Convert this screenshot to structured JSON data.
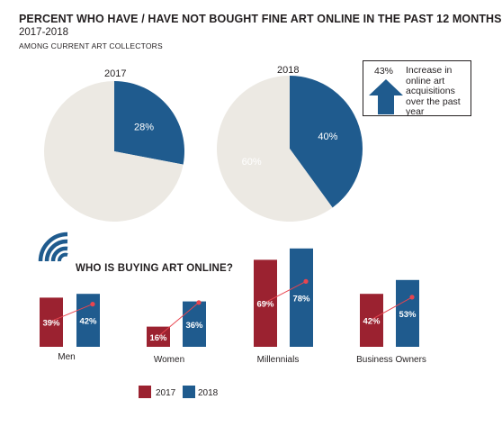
{
  "title": "PERCENT WHO HAVE / HAVE NOT BOUGHT FINE ART ONLINE IN THE PAST 12 MONTHS",
  "subtitle": "2017-2018",
  "audience": "AMONG CURRENT ART COLLECTORS",
  "colors": {
    "y2017": "#9b2230",
    "y2018": "#1f5b8e",
    "pie_rest": "#ece9e3",
    "arrow": "#e8454f"
  },
  "callout": {
    "value": "43%",
    "text": "Increase in online art acquisitions over the past year",
    "icon": "up-arrow-icon"
  },
  "section_icon": "wifi-signal-icon",
  "section_title": "WHO IS BUYING ART ONLINE?",
  "legend": [
    "2017",
    "2018"
  ],
  "chart_data": [
    {
      "type": "pie",
      "title": "2017",
      "slices": [
        {
          "value": 28,
          "label": "28%",
          "color": "#1f5b8e"
        },
        {
          "value": 72,
          "label": "",
          "color": "#ece9e3"
        }
      ]
    },
    {
      "type": "pie",
      "title": "2018",
      "slices": [
        {
          "value": 40,
          "label": "40%",
          "color": "#1f5b8e"
        },
        {
          "value": 60,
          "label": "60%",
          "color": "#ece9e3"
        }
      ]
    },
    {
      "type": "bar",
      "title": "WHO IS BUYING ART ONLINE?",
      "categories": [
        "Men",
        "Women",
        "Millennials",
        "Business Owners"
      ],
      "series": [
        {
          "name": "2017",
          "values": [
            39,
            16,
            69,
            42
          ],
          "labels": [
            "39%",
            "16%",
            "69%",
            "42%"
          ]
        },
        {
          "name": "2018",
          "values": [
            42,
            36,
            78,
            53
          ],
          "labels": [
            "42%",
            "36%",
            "78%",
            "53%"
          ]
        }
      ],
      "legend": "bottom"
    }
  ]
}
